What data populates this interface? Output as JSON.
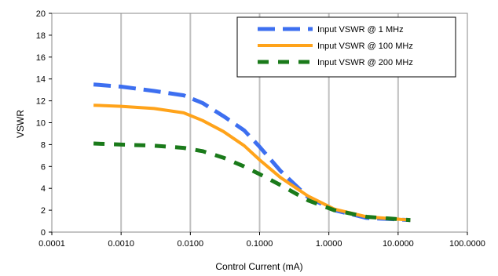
{
  "chart_data": {
    "type": "line",
    "title": "",
    "xlabel": "Control Current (mA)",
    "ylabel": "VSWR",
    "x_scale": "log",
    "xlim": [
      0.0001,
      100
    ],
    "ylim": [
      0,
      20
    ],
    "x_tick_labels": [
      "0.0001",
      "0.0010",
      "0.0100",
      "0.1000",
      "1.0000",
      "10.0000",
      "100.0000"
    ],
    "y_ticks": [
      0,
      2,
      4,
      6,
      8,
      10,
      12,
      14,
      16,
      18,
      20
    ],
    "grid": "vertical",
    "legend_position": "top-right",
    "series": [
      {
        "name": "Input VSWR @ 1 MHz",
        "color": "#3d6ff0",
        "style": "dashed",
        "points": [
          [
            0.0004,
            13.5
          ],
          [
            0.001,
            13.3
          ],
          [
            0.003,
            12.9
          ],
          [
            0.008,
            12.5
          ],
          [
            0.015,
            11.8
          ],
          [
            0.03,
            10.6
          ],
          [
            0.06,
            9.3
          ],
          [
            0.1,
            7.8
          ],
          [
            0.2,
            5.6
          ],
          [
            0.5,
            3.2
          ],
          [
            1.2,
            2.0
          ],
          [
            3.5,
            1.3
          ],
          [
            15,
            1.1
          ]
        ]
      },
      {
        "name": "Input VSWR @ 100 MHz",
        "color": "#ffa31a",
        "style": "solid",
        "points": [
          [
            0.0004,
            11.6
          ],
          [
            0.001,
            11.5
          ],
          [
            0.003,
            11.3
          ],
          [
            0.008,
            10.9
          ],
          [
            0.015,
            10.2
          ],
          [
            0.03,
            9.2
          ],
          [
            0.06,
            7.9
          ],
          [
            0.1,
            6.6
          ],
          [
            0.2,
            5.0
          ],
          [
            0.5,
            3.3
          ],
          [
            1.2,
            2.1
          ],
          [
            3.5,
            1.4
          ],
          [
            15,
            1.1
          ]
        ]
      },
      {
        "name": "Input VSWR @ 200 MHz",
        "color": "#1a7a1a",
        "style": "dashed",
        "points": [
          [
            0.0004,
            8.1
          ],
          [
            0.001,
            8.0
          ],
          [
            0.003,
            7.9
          ],
          [
            0.008,
            7.7
          ],
          [
            0.015,
            7.4
          ],
          [
            0.03,
            6.8
          ],
          [
            0.06,
            6.0
          ],
          [
            0.1,
            5.3
          ],
          [
            0.2,
            4.3
          ],
          [
            0.5,
            2.9
          ],
          [
            1.2,
            2.0
          ],
          [
            3.5,
            1.4
          ],
          [
            15,
            1.1
          ]
        ]
      }
    ]
  }
}
